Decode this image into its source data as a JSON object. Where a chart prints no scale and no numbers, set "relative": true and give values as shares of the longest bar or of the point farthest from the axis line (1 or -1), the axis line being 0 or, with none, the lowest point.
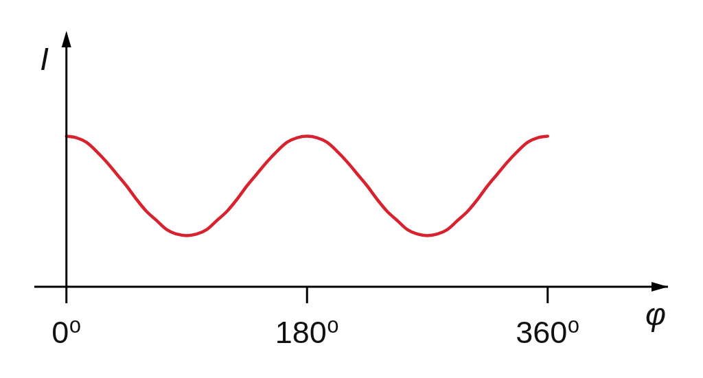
{
  "chart_data": {
    "type": "line",
    "xlabel": "φ",
    "ylabel": "I",
    "relative": true,
    "line_style": "solid",
    "xlim": [
      -24,
      450
    ],
    "xticks": [
      {
        "value": 0,
        "label": "0⁰"
      },
      {
        "value": 180,
        "label": "180⁰"
      },
      {
        "value": 360,
        "label": "360⁰"
      }
    ],
    "x": [
      0,
      7.5,
      15,
      22.5,
      30,
      37.5,
      45,
      52.5,
      60,
      67.5,
      75,
      82.5,
      90,
      97.5,
      105,
      112.5,
      120,
      127.5,
      135,
      142.5,
      150,
      157.5,
      165,
      172.5,
      180,
      187.5,
      195,
      202.5,
      210,
      217.5,
      225,
      232.5,
      240,
      247.5,
      255,
      262.5,
      270,
      277.5,
      285,
      292.5,
      300,
      307.5,
      315,
      322.5,
      330,
      337.5,
      345,
      352.5,
      360
    ],
    "series": [
      {
        "color": "#d7232f",
        "values": [
          1.0,
          0.99,
          0.96,
          0.9,
          0.83,
          0.75,
          0.67,
          0.58,
          0.5,
          0.44,
          0.38,
          0.35,
          0.34,
          0.35,
          0.38,
          0.44,
          0.5,
          0.58,
          0.67,
          0.75,
          0.83,
          0.9,
          0.96,
          0.99,
          1.0,
          0.99,
          0.96,
          0.9,
          0.83,
          0.75,
          0.67,
          0.58,
          0.5,
          0.44,
          0.38,
          0.35,
          0.34,
          0.35,
          0.38,
          0.44,
          0.5,
          0.58,
          0.67,
          0.75,
          0.83,
          0.9,
          0.96,
          0.99,
          1.0
        ]
      }
    ]
  }
}
